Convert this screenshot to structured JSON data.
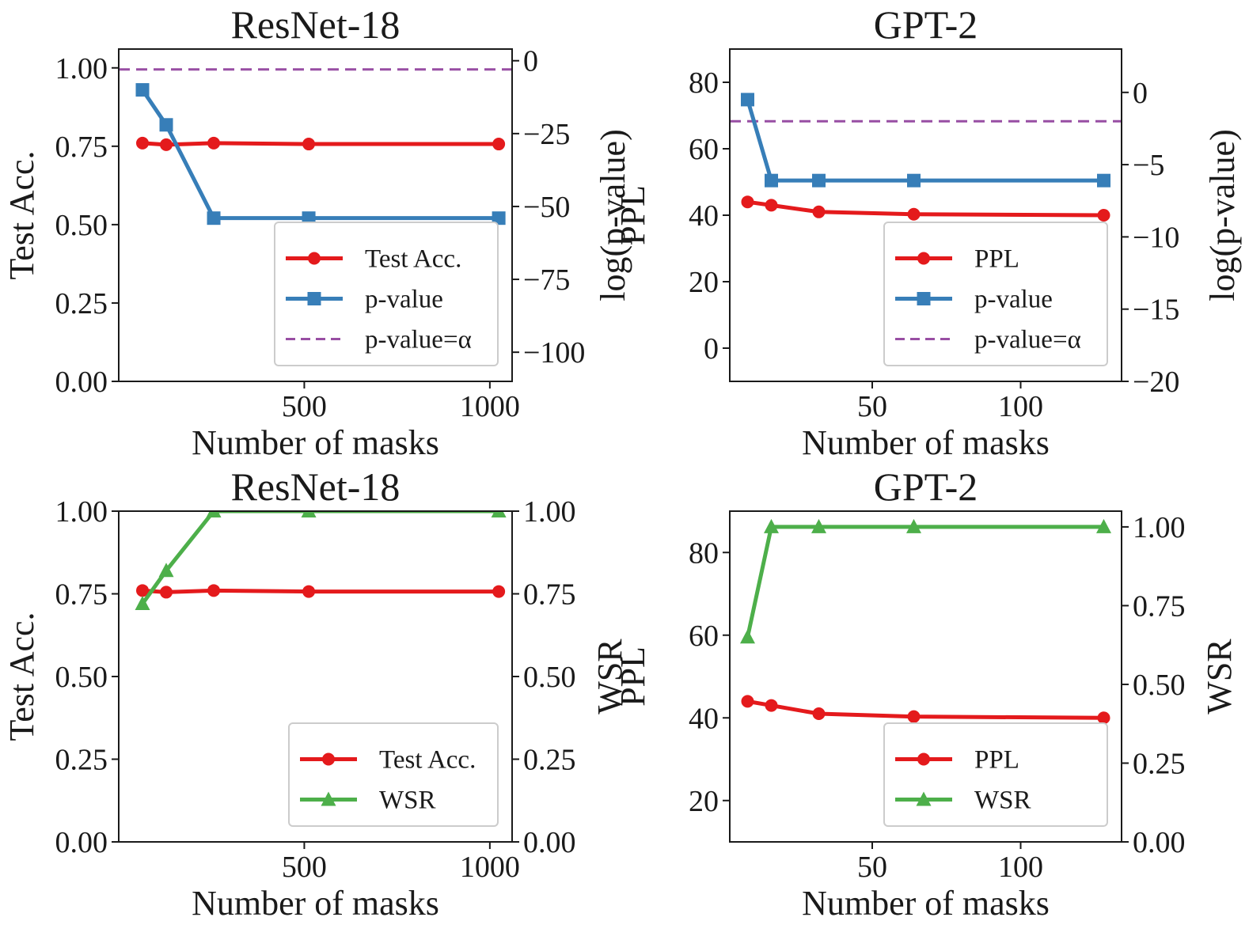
{
  "colors": {
    "primary": "#e41a1c",
    "pvalue": "#377eb8",
    "wsr": "#4daf4a",
    "alpha": "#984ea3",
    "axis": "#1a1a1a",
    "background": "#ffffff",
    "legend_border": "#cccccc"
  },
  "chart_data": [
    {
      "type": "line",
      "title": "ResNet-18",
      "xlabel": "Number of masks",
      "ylabel_left": "Test Acc.",
      "ylabel_right": "log(p-value)",
      "xlim": [
        0,
        1060
      ],
      "ylim_left": [
        0,
        1.06
      ],
      "ylim_right": [
        -110,
        4
      ],
      "xticks": [
        500,
        1000
      ],
      "xtick_labels": [
        "500",
        "1000"
      ],
      "yticks_left": [
        0,
        0.25,
        0.5,
        0.75,
        1.0
      ],
      "ytick_labels_left": [
        "0.00",
        "0.25",
        "0.50",
        "0.75",
        "1.00"
      ],
      "yticks_right": [
        -100,
        -75,
        -50,
        -25,
        0
      ],
      "ytick_labels_right": [
        "−100",
        "−75",
        "−50",
        "−25",
        "0"
      ],
      "series": [
        {
          "name": "Test Acc.",
          "axis": "left",
          "color_key": "primary",
          "marker": "circle",
          "x": [
            64,
            128,
            256,
            512,
            1024
          ],
          "y": [
            0.76,
            0.755,
            0.76,
            0.757,
            0.757
          ]
        },
        {
          "name": "p-value",
          "axis": "right",
          "color_key": "pvalue",
          "marker": "square",
          "x": [
            64,
            128,
            256,
            512,
            1024
          ],
          "y": [
            -10,
            -22,
            -54,
            -54,
            -54
          ]
        }
      ],
      "hline": {
        "name": "p-value=α",
        "axis": "right",
        "y": -3,
        "color_key": "alpha",
        "style": "dashed"
      },
      "legend": {
        "position": "lower-right",
        "entries": [
          {
            "label": "Test Acc.",
            "color_key": "primary",
            "marker": "circle",
            "style": "solid"
          },
          {
            "label": "p-value",
            "color_key": "pvalue",
            "marker": "square",
            "style": "solid"
          },
          {
            "label": "p-value=α",
            "color_key": "alpha",
            "marker": "none",
            "style": "dashed"
          }
        ]
      }
    },
    {
      "type": "line",
      "title": "GPT-2",
      "xlabel": "Number of masks",
      "ylabel_left": "PPL",
      "ylabel_right": "log(p-value)",
      "xlim": [
        2,
        134
      ],
      "ylim_left": [
        -10,
        90
      ],
      "ylim_right": [
        -20,
        3
      ],
      "xticks": [
        50,
        100
      ],
      "xtick_labels": [
        "50",
        "100"
      ],
      "yticks_left": [
        0,
        20,
        40,
        60,
        80
      ],
      "ytick_labels_left": [
        "0",
        "20",
        "40",
        "60",
        "80"
      ],
      "yticks_right": [
        -20,
        -15,
        -10,
        -5,
        0
      ],
      "ytick_labels_right": [
        "−20",
        "−15",
        "−10",
        "−5",
        "0"
      ],
      "series": [
        {
          "name": "PPL",
          "axis": "left",
          "color_key": "primary",
          "marker": "circle",
          "x": [
            8,
            16,
            32,
            64,
            128
          ],
          "y": [
            44,
            43,
            41,
            40.3,
            40
          ]
        },
        {
          "name": "p-value",
          "axis": "right",
          "color_key": "pvalue",
          "marker": "square",
          "x": [
            8,
            16,
            32,
            64,
            128
          ],
          "y": [
            -0.5,
            -6.1,
            -6.1,
            -6.1,
            -6.1
          ]
        }
      ],
      "hline": {
        "name": "p-value=α",
        "axis": "right",
        "y": -2,
        "color_key": "alpha",
        "style": "dashed"
      },
      "legend": {
        "position": "lower-right",
        "entries": [
          {
            "label": "PPL",
            "color_key": "primary",
            "marker": "circle",
            "style": "solid"
          },
          {
            "label": "p-value",
            "color_key": "pvalue",
            "marker": "square",
            "style": "solid"
          },
          {
            "label": "p-value=α",
            "color_key": "alpha",
            "marker": "none",
            "style": "dashed"
          }
        ]
      }
    },
    {
      "type": "line",
      "title": "ResNet-18",
      "xlabel": "Number of masks",
      "ylabel_left": "Test Acc.",
      "ylabel_right": "WSR",
      "xlim": [
        0,
        1060
      ],
      "ylim_left": [
        0,
        1.0
      ],
      "ylim_right": [
        0,
        1.0
      ],
      "xticks": [
        500,
        1000
      ],
      "xtick_labels": [
        "500",
        "1000"
      ],
      "yticks_left": [
        0,
        0.25,
        0.5,
        0.75,
        1.0
      ],
      "ytick_labels_left": [
        "0.00",
        "0.25",
        "0.50",
        "0.75",
        "1.00"
      ],
      "yticks_right": [
        0,
        0.25,
        0.5,
        0.75,
        1.0
      ],
      "ytick_labels_right": [
        "0.00",
        "0.25",
        "0.50",
        "0.75",
        "1.00"
      ],
      "series": [
        {
          "name": "Test Acc.",
          "axis": "left",
          "color_key": "primary",
          "marker": "circle",
          "x": [
            64,
            128,
            256,
            512,
            1024
          ],
          "y": [
            0.76,
            0.755,
            0.76,
            0.757,
            0.757
          ]
        },
        {
          "name": "WSR",
          "axis": "right",
          "color_key": "wsr",
          "marker": "triangle",
          "x": [
            64,
            128,
            256,
            512,
            1024
          ],
          "y": [
            0.72,
            0.82,
            1.0,
            1.0,
            1.0
          ]
        }
      ],
      "legend": {
        "position": "lower-right",
        "entries": [
          {
            "label": "Test Acc.",
            "color_key": "primary",
            "marker": "circle",
            "style": "solid"
          },
          {
            "label": "WSR",
            "color_key": "wsr",
            "marker": "triangle",
            "style": "solid"
          }
        ]
      }
    },
    {
      "type": "line",
      "title": "GPT-2",
      "xlabel": "Number of masks",
      "ylabel_left": "PPL",
      "ylabel_right": "WSR",
      "xlim": [
        2,
        134
      ],
      "ylim_left": [
        10,
        90
      ],
      "ylim_right": [
        0,
        1.05
      ],
      "xticks": [
        50,
        100
      ],
      "xtick_labels": [
        "50",
        "100"
      ],
      "yticks_left": [
        20,
        40,
        60,
        80
      ],
      "ytick_labels_left": [
        "20",
        "40",
        "60",
        "80"
      ],
      "yticks_right": [
        0,
        0.25,
        0.5,
        0.75,
        1.0
      ],
      "ytick_labels_right": [
        "0.00",
        "0.25",
        "0.50",
        "0.75",
        "1.00"
      ],
      "series": [
        {
          "name": "PPL",
          "axis": "left",
          "color_key": "primary",
          "marker": "circle",
          "x": [
            8,
            16,
            32,
            64,
            128
          ],
          "y": [
            44,
            43,
            41,
            40.3,
            40
          ]
        },
        {
          "name": "WSR",
          "axis": "right",
          "color_key": "wsr",
          "marker": "triangle",
          "x": [
            8,
            16,
            32,
            64,
            128
          ],
          "y": [
            0.65,
            1.0,
            1.0,
            1.0,
            1.0
          ]
        }
      ],
      "legend": {
        "position": "lower-right",
        "entries": [
          {
            "label": "PPL",
            "color_key": "primary",
            "marker": "circle",
            "style": "solid"
          },
          {
            "label": "WSR",
            "color_key": "wsr",
            "marker": "triangle",
            "style": "solid"
          }
        ]
      }
    }
  ]
}
